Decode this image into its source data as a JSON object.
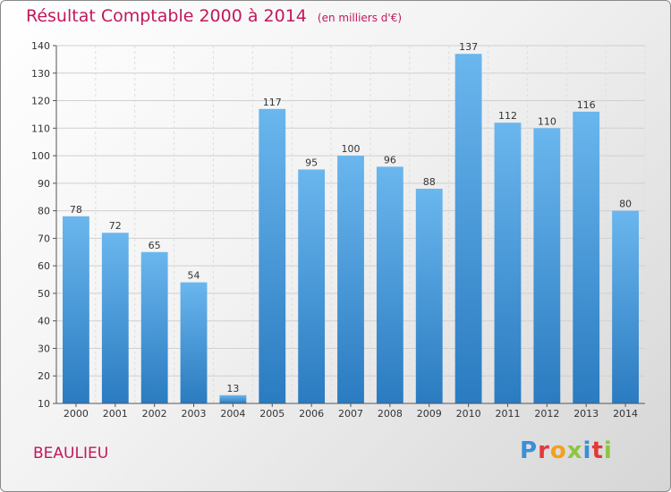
{
  "header": {
    "title": "Résultat Comptable 2000 à 2014",
    "unit": "(en milliers d'€)"
  },
  "footer": {
    "city": "BEAULIEU",
    "logo": "Proxiti"
  },
  "chart_data": {
    "type": "bar",
    "title": "Résultat Comptable 2000 à 2014",
    "subtitle": "(en milliers d'€)",
    "xlabel": "",
    "ylabel": "",
    "categories": [
      "2000",
      "2001",
      "2002",
      "2003",
      "2004",
      "2005",
      "2006",
      "2007",
      "2008",
      "2009",
      "2010",
      "2011",
      "2012",
      "2013",
      "2014"
    ],
    "values": [
      78,
      72,
      65,
      54,
      13,
      117,
      95,
      100,
      96,
      88,
      137,
      112,
      110,
      116,
      80
    ],
    "ylim": [
      10,
      140
    ],
    "yticks": [
      10,
      20,
      30,
      40,
      50,
      60,
      70,
      80,
      90,
      100,
      110,
      120,
      130,
      140
    ],
    "grid": true,
    "legend": "none",
    "colors": {
      "bar_top": "#6ab6ee",
      "bar_bottom": "#2a7bc0",
      "grid": "#cfcfcf"
    }
  }
}
